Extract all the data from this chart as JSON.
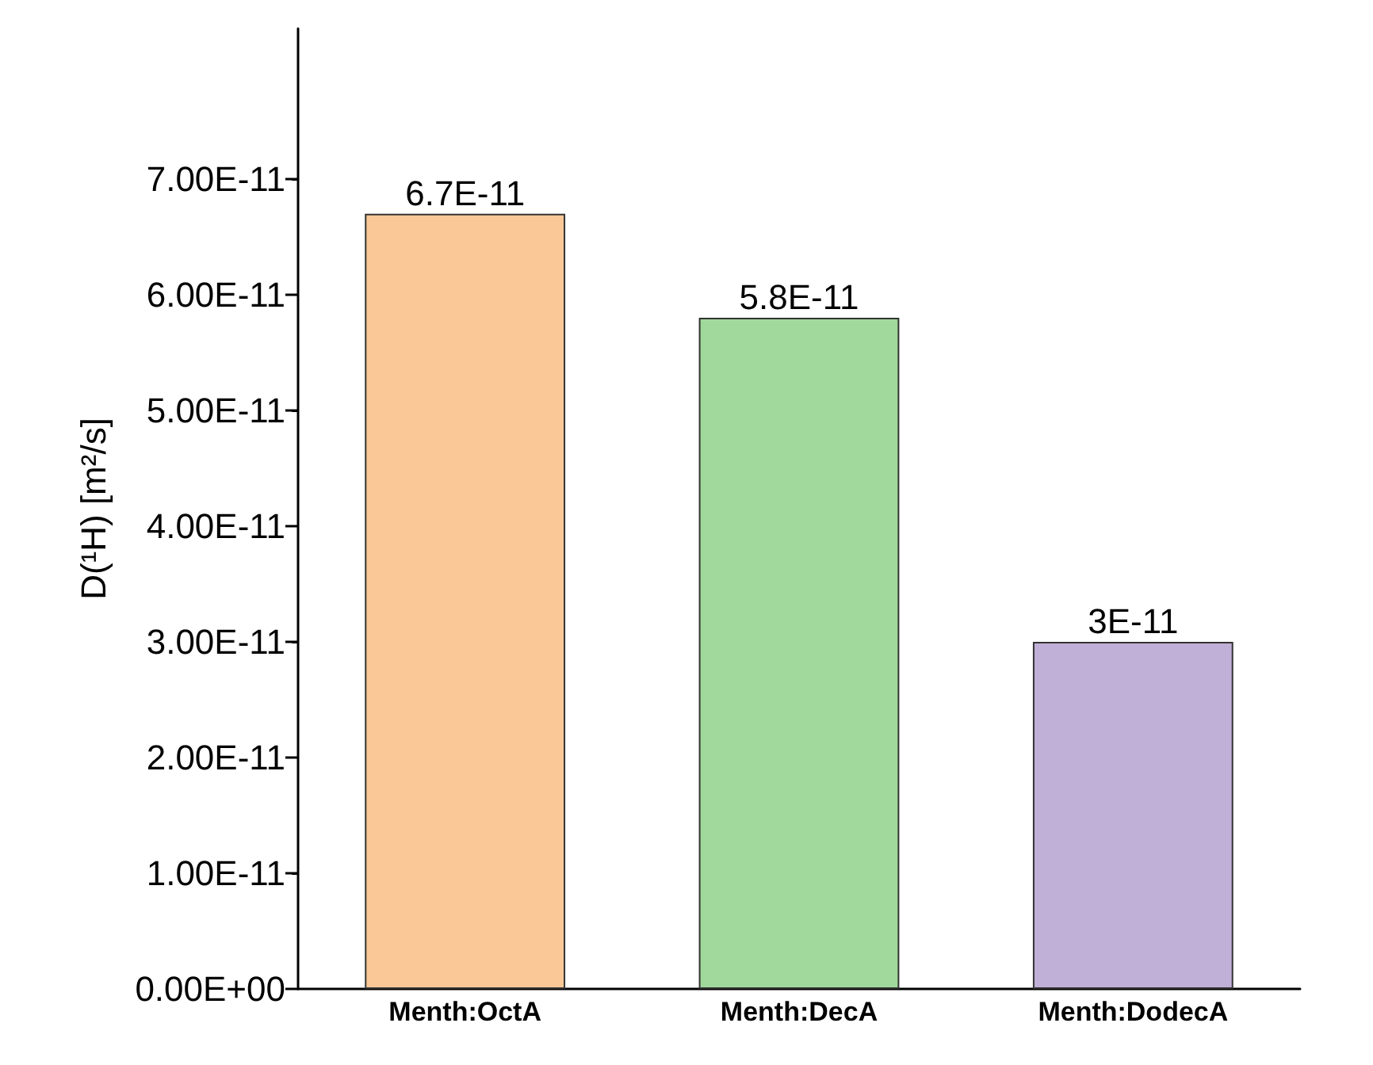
{
  "chart_data": {
    "type": "bar",
    "ylabel": "D(¹H) [m²/s]",
    "categories": [
      "Menth:OctA",
      "Menth:DecA",
      "Menth:DodecA"
    ],
    "values": [
      6.7e-11,
      5.8e-11,
      3e-11
    ],
    "colors": [
      "#f9c896",
      "#a0d99b",
      "#c0afd6"
    ],
    "value_labels": [
      "6.7E-11",
      "5.8E-11",
      "3E-11"
    ],
    "ylim": [
      0,
      8.3e-11
    ],
    "yticks": [
      {
        "value": 0,
        "label": "0.00E+00"
      },
      {
        "value": 1e-11,
        "label": "1.00E-11"
      },
      {
        "value": 2e-11,
        "label": "2.00E-11"
      },
      {
        "value": 3e-11,
        "label": "3.00E-11"
      },
      {
        "value": 4e-11,
        "label": "4.00E-11"
      },
      {
        "value": 5e-11,
        "label": "5.00E-11"
      },
      {
        "value": 6e-11,
        "label": "6.00E-11"
      },
      {
        "value": 7e-11,
        "label": "7.00E-11"
      }
    ],
    "grid": false
  }
}
